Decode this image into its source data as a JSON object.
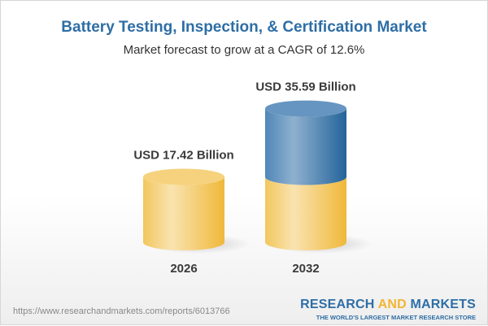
{
  "header": {
    "title": "Battery Testing, Inspection, & Certification Market",
    "subtitle": "Market forecast to grow at a CAGR of 12.6%"
  },
  "chart_data": {
    "type": "bar",
    "style": "3d-cylinder",
    "categories": [
      "2026",
      "2032"
    ],
    "values": [
      17.42,
      35.59
    ],
    "data_labels": [
      "USD 17.42 Billion",
      "USD 35.59 Billion"
    ],
    "unit": "USD Billion",
    "colors": {
      "base": "#f3c150",
      "growth": "#3f7cb0"
    }
  },
  "footer": {
    "url": "https://www.researchandmarkets.com/reports/6013766",
    "logo_research": "RESEARCH",
    "logo_and": "AND",
    "logo_markets": "MARKETS",
    "logo_tagline": "THE WORLD'S LARGEST MARKET RESEARCH STORE"
  }
}
